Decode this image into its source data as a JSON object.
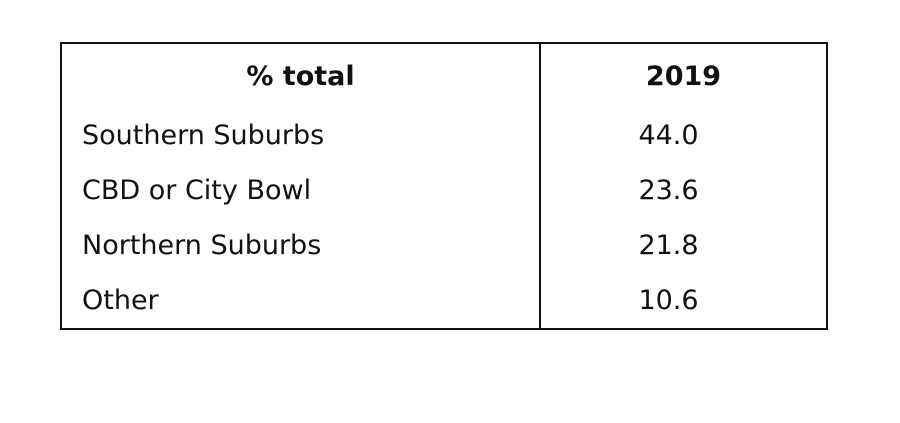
{
  "table": {
    "header": [
      "% total",
      "2019"
    ],
    "rows": [
      [
        "Southern Suburbs",
        "44.0"
      ],
      [
        "CBD or City Bowl",
        "23.6"
      ],
      [
        "Northern Suburbs",
        "21.8"
      ],
      [
        "Other",
        "10.6"
      ]
    ]
  }
}
